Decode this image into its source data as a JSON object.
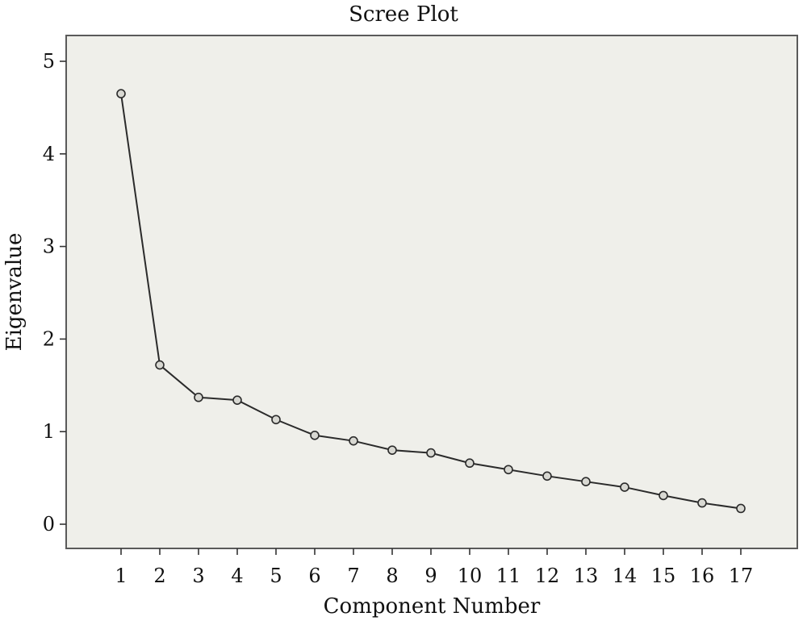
{
  "chart_data": {
    "type": "line",
    "title": "Scree Plot",
    "xlabel": "Component Number",
    "ylabel": "Eigenvalue",
    "x": [
      1,
      2,
      3,
      4,
      5,
      6,
      7,
      8,
      9,
      10,
      11,
      12,
      13,
      14,
      15,
      16,
      17
    ],
    "series": [
      {
        "values": [
          4.65,
          1.72,
          1.37,
          1.34,
          1.13,
          0.96,
          0.9,
          0.8,
          0.77,
          0.66,
          0.59,
          0.52,
          0.46,
          0.4,
          0.31,
          0.23,
          0.17
        ]
      }
    ],
    "xticks": [
      "1",
      "2",
      "3",
      "4",
      "5",
      "6",
      "7",
      "8",
      "9",
      "10",
      "11",
      "12",
      "13",
      "14",
      "15",
      "16",
      "17"
    ],
    "yticks": [
      "0",
      "1",
      "2",
      "3",
      "4",
      "5"
    ],
    "ylim": [
      -0.27,
      5.27
    ],
    "grid": false,
    "legend": "none",
    "colors": {
      "plot_background": "#efefea",
      "line": "#2b2b2b",
      "marker_fill": "#d8d8d2"
    }
  }
}
